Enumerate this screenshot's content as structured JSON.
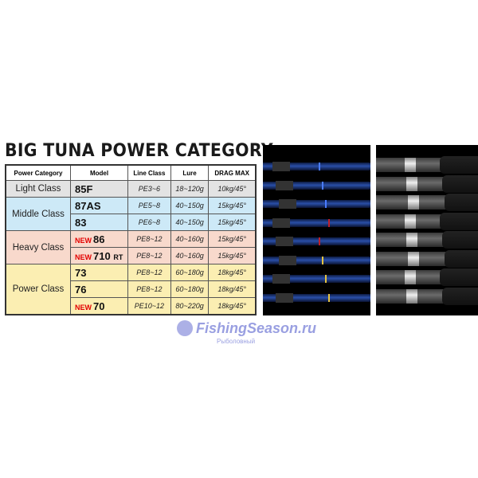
{
  "title": "BIG TUNA POWER CATEGORY",
  "table": {
    "headers": [
      "Power Category",
      "Model",
      "Line Class",
      "Lure",
      "DRAG MAX"
    ],
    "groups": [
      {
        "category": "Light Class",
        "color": "#e3e3e3",
        "rows": [
          {
            "new": "",
            "model": "85F",
            "suffix": "",
            "line": "PE3~6",
            "lure": "18~120g",
            "drag": "10kg/45°"
          }
        ]
      },
      {
        "category": "Middle Class",
        "color": "#cde9f7",
        "rows": [
          {
            "new": "",
            "model": "87AS",
            "suffix": "",
            "line": "PE5~8",
            "lure": "40~150g",
            "drag": "15kg/45°"
          },
          {
            "new": "",
            "model": "83",
            "suffix": "",
            "line": "PE6~8",
            "lure": "40~150g",
            "drag": "15kg/45°"
          }
        ]
      },
      {
        "category": "Heavy Class",
        "color": "#f8d9cc",
        "rows": [
          {
            "new": "NEW",
            "model": "86",
            "suffix": "",
            "line": "PE8~12",
            "lure": "40~160g",
            "drag": "15kg/45°"
          },
          {
            "new": "NEW",
            "model": "710",
            "suffix": "RT",
            "line": "PE8~12",
            "lure": "40~160g",
            "drag": "15kg/45°"
          }
        ]
      },
      {
        "category": "Power Class",
        "color": "#fbeeb2",
        "rows": [
          {
            "new": "",
            "model": "73",
            "suffix": "",
            "line": "PE8~12",
            "lure": "60~180g",
            "drag": "18kg/45°"
          },
          {
            "new": "",
            "model": "76",
            "suffix": "",
            "line": "PE8~12",
            "lure": "60~180g",
            "drag": "18kg/45°"
          },
          {
            "new": "NEW",
            "model": "70",
            "suffix": "",
            "line": "PE10~12",
            "lure": "80~220g",
            "drag": "18kg/45°"
          }
        ]
      }
    ]
  },
  "watermark": {
    "text": "FishingSeason.ru",
    "sub": "Рыболовный"
  },
  "photos": {
    "rod_blanks": "rod-blanks-photo",
    "rod_handles": "rod-handles-photo",
    "rod_count": 8
  }
}
